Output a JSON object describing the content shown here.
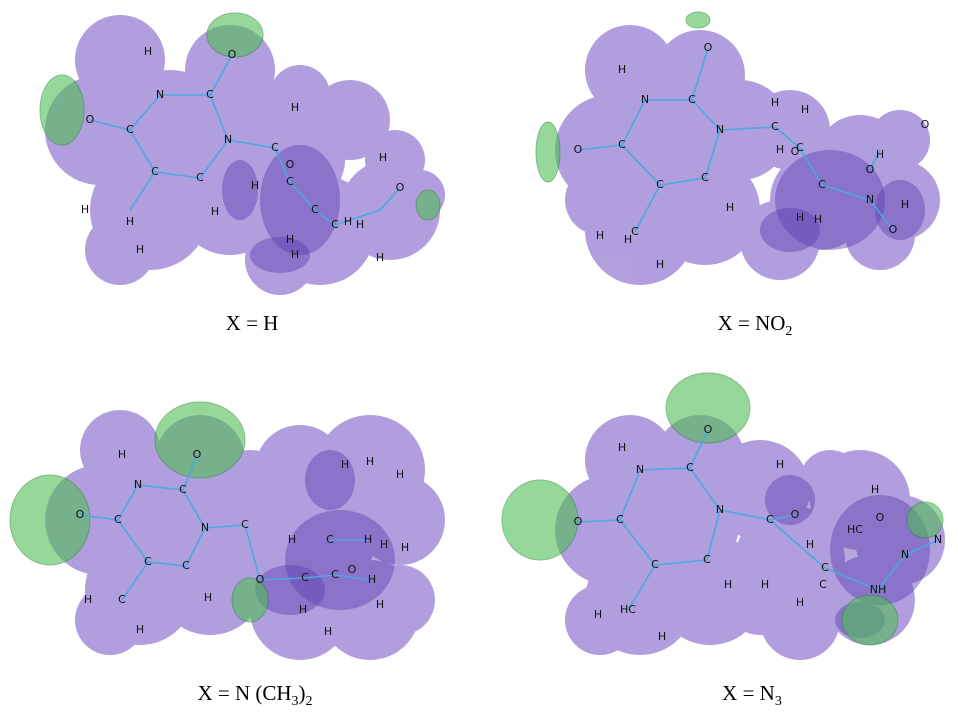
{
  "panels": [
    {
      "atoms": [
        "H",
        "O",
        "N",
        "C",
        "H",
        "O",
        "C",
        "N",
        "C",
        "H",
        "O",
        "C",
        "C",
        "H",
        "C",
        "O",
        "H",
        "H",
        "C",
        "H",
        "H",
        "H",
        "C",
        "H",
        "H",
        "H",
        "H"
      ],
      "caption": [
        {
          "text": "X = H"
        }
      ]
    },
    {
      "atoms": [
        "H",
        "O",
        "N",
        "C",
        "H",
        "H",
        "C",
        "O",
        "N",
        "O",
        "C",
        "H",
        "O",
        "C",
        "H",
        "O",
        "C",
        "C",
        "C",
        "N",
        "H",
        "H",
        "H",
        "H",
        "H",
        "C",
        "H",
        "O",
        "H"
      ],
      "caption": [
        {
          "text": "X = NO"
        },
        {
          "sub": "2"
        }
      ]
    },
    {
      "atoms": [
        "H",
        "O",
        "N",
        "C",
        "H",
        "H",
        "H",
        "O",
        "C",
        "N",
        "C",
        "H",
        "C",
        "H",
        "H",
        "C",
        "C",
        "H",
        "O",
        "C",
        "C",
        "O",
        "H",
        "H",
        "C",
        "H",
        "H",
        "H",
        "H",
        "H"
      ],
      "caption": [
        {
          "text": "X = N (CH"
        },
        {
          "sub": "3"
        },
        {
          "text": ")"
        },
        {
          "sub": "2"
        }
      ]
    },
    {
      "atoms": [
        "O",
        "H",
        "N",
        "C",
        "H",
        "H",
        "N",
        "C",
        "O",
        "O",
        "O",
        "C",
        "N",
        "H",
        "HC",
        "C",
        "C",
        "N",
        "C",
        "H",
        "H",
        "C",
        "NH",
        "H",
        "HC",
        "H",
        "H"
      ],
      "caption": [
        {
          "text": "X = N"
        },
        {
          "sub": "3"
        }
      ]
    }
  ]
}
